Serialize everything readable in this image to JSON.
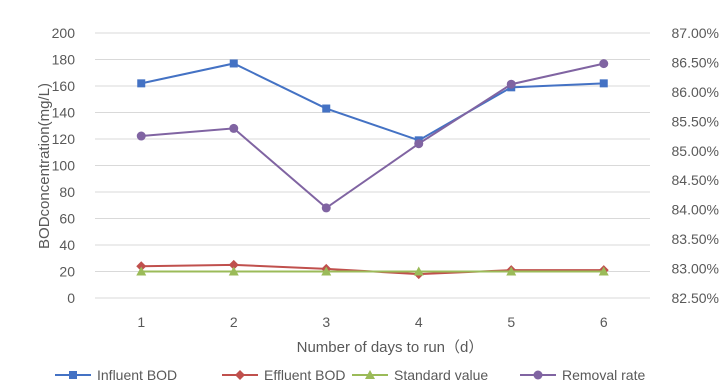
{
  "chart_data": {
    "type": "line",
    "title": "",
    "xlabel": "Number of days to run（d）",
    "ylabel": "BODconcentration(mg/L)",
    "categories": [
      "1",
      "2",
      "3",
      "4",
      "5",
      "6"
    ],
    "ylim": [
      0,
      200
    ],
    "y_ticks": [
      "0",
      "20",
      "40",
      "60",
      "80",
      "100",
      "120",
      "140",
      "160",
      "180",
      "200"
    ],
    "y2lim": [
      82.5,
      87.0
    ],
    "y2_ticks": [
      "82.50%",
      "83.00%",
      "83.50%",
      "84.00%",
      "84.50%",
      "85.00%",
      "85.50%",
      "86.00%",
      "86.50%",
      "87.00%"
    ],
    "grid": true,
    "legend_position": "bottom",
    "series": [
      {
        "name": "Influent BOD",
        "axis": "left",
        "marker": "square",
        "color": "#4472c4",
        "values": [
          162,
          177,
          143,
          119,
          159,
          162
        ]
      },
      {
        "name": "Effluent BOD",
        "axis": "left",
        "marker": "diamond",
        "color": "#c0504d",
        "values": [
          24,
          25,
          22,
          18,
          21,
          21
        ]
      },
      {
        "name": "Standard value",
        "axis": "left",
        "marker": "triangle",
        "color": "#9bbb59",
        "values": [
          20,
          20,
          20,
          20,
          20,
          20
        ]
      },
      {
        "name": "Removal rate",
        "axis": "right",
        "marker": "circle",
        "color": "#8064a2",
        "values": [
          85.25,
          85.38,
          84.03,
          85.12,
          86.13,
          86.48
        ]
      }
    ]
  }
}
